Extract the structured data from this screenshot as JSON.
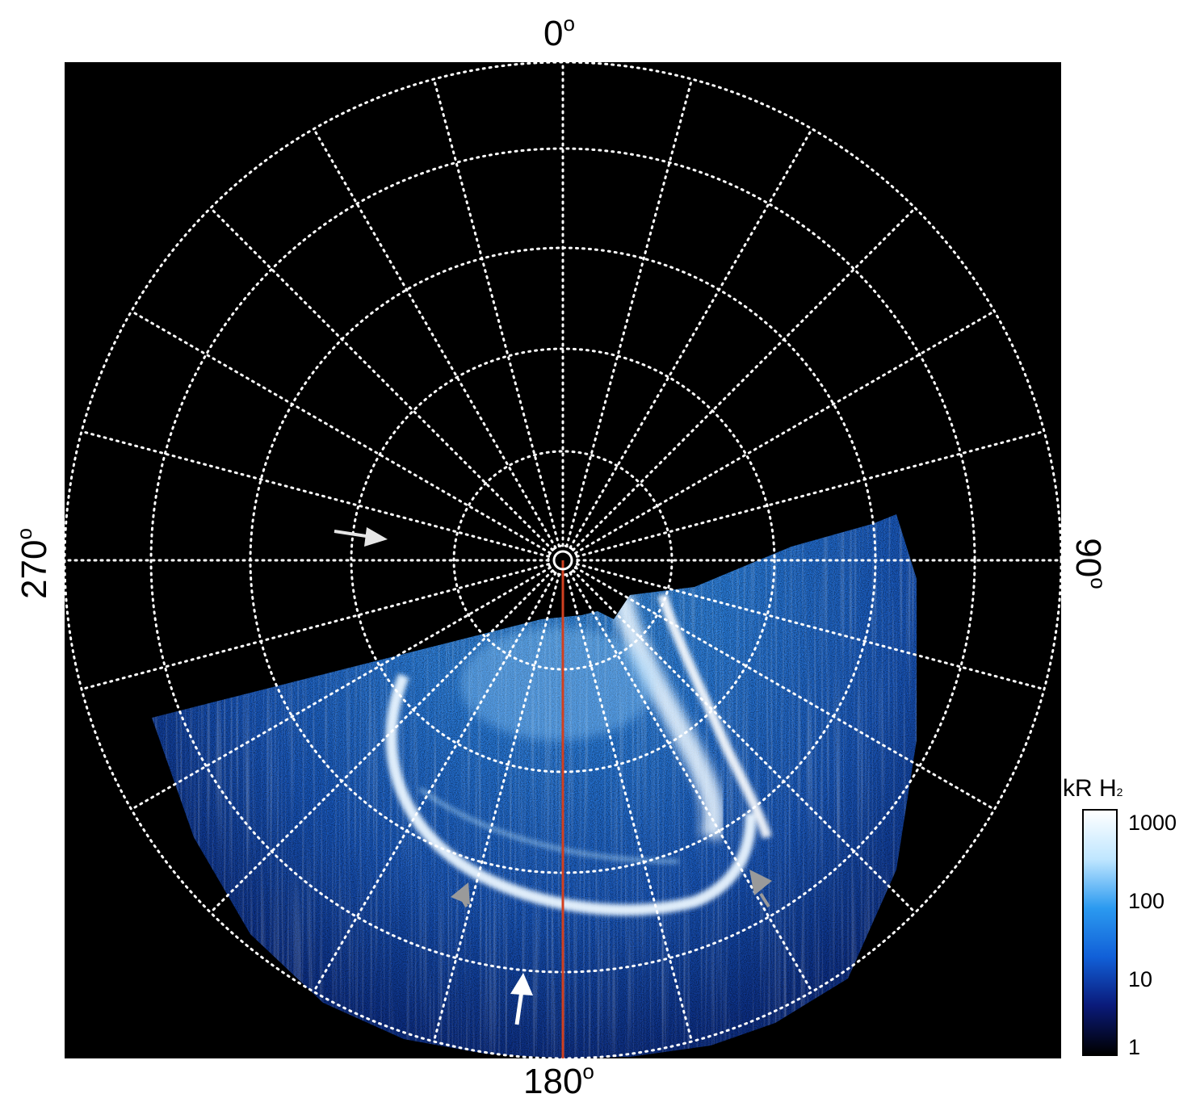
{
  "axis_labels": {
    "top": "0",
    "bottom": "180",
    "left": "270",
    "right": "90",
    "degree_symbol": "o"
  },
  "colorbar": {
    "title": "kR H",
    "title_subscript": "2",
    "ticks": [
      "1000",
      "100",
      "10",
      "1"
    ],
    "colors": [
      "#000000",
      "#0a1a7a",
      "#1160d8",
      "#2b9af0",
      "#bfe6ff",
      "#ffffff"
    ]
  },
  "image": {
    "background": "#000000",
    "grid_color": "#ffffff",
    "meridian_color": "#d04020",
    "arrow_white": "#ffffff",
    "arrow_grey": "#9a9a9a"
  }
}
